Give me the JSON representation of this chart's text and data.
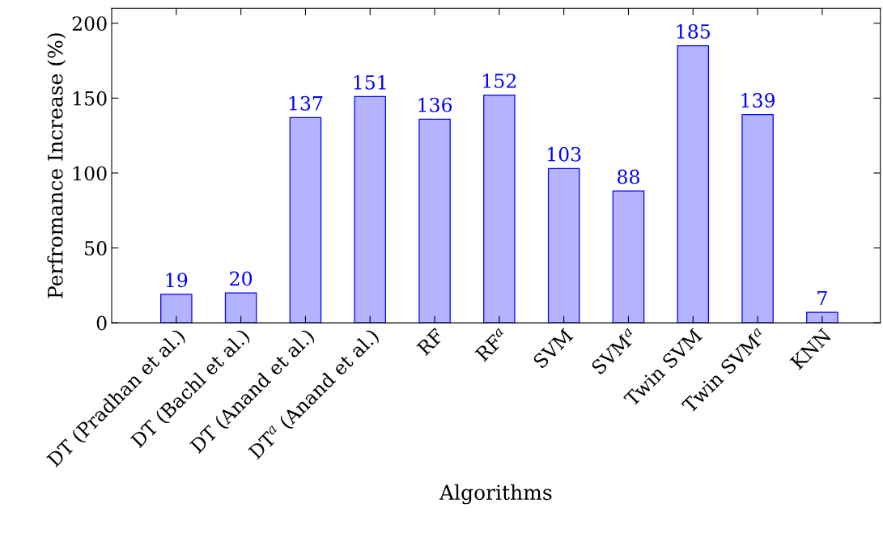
{
  "chart_data": {
    "type": "bar",
    "xlabel": "Algorithms",
    "ylabel": "Perfromance Increase (%)",
    "categories": [
      "DT (Pradhan et al.)",
      "DT (Bachl et al.)",
      "DT (Anand et al.)",
      "DT$^{a}$ (Anand et al.)",
      "RF",
      "RF$^{a}$",
      "SVM",
      "SVM$^{a}$",
      "Twin SVM",
      "Twin SVM$^{a}$",
      "KNN"
    ],
    "values": [
      19,
      20,
      137,
      151,
      136,
      152,
      103,
      88,
      185,
      139,
      7
    ],
    "color": "#b3b3ff",
    "ylim": [
      0,
      210
    ],
    "yticks": [
      0,
      50,
      100,
      150,
      200
    ],
    "data_labels": true,
    "grid": false,
    "legend": false
  }
}
